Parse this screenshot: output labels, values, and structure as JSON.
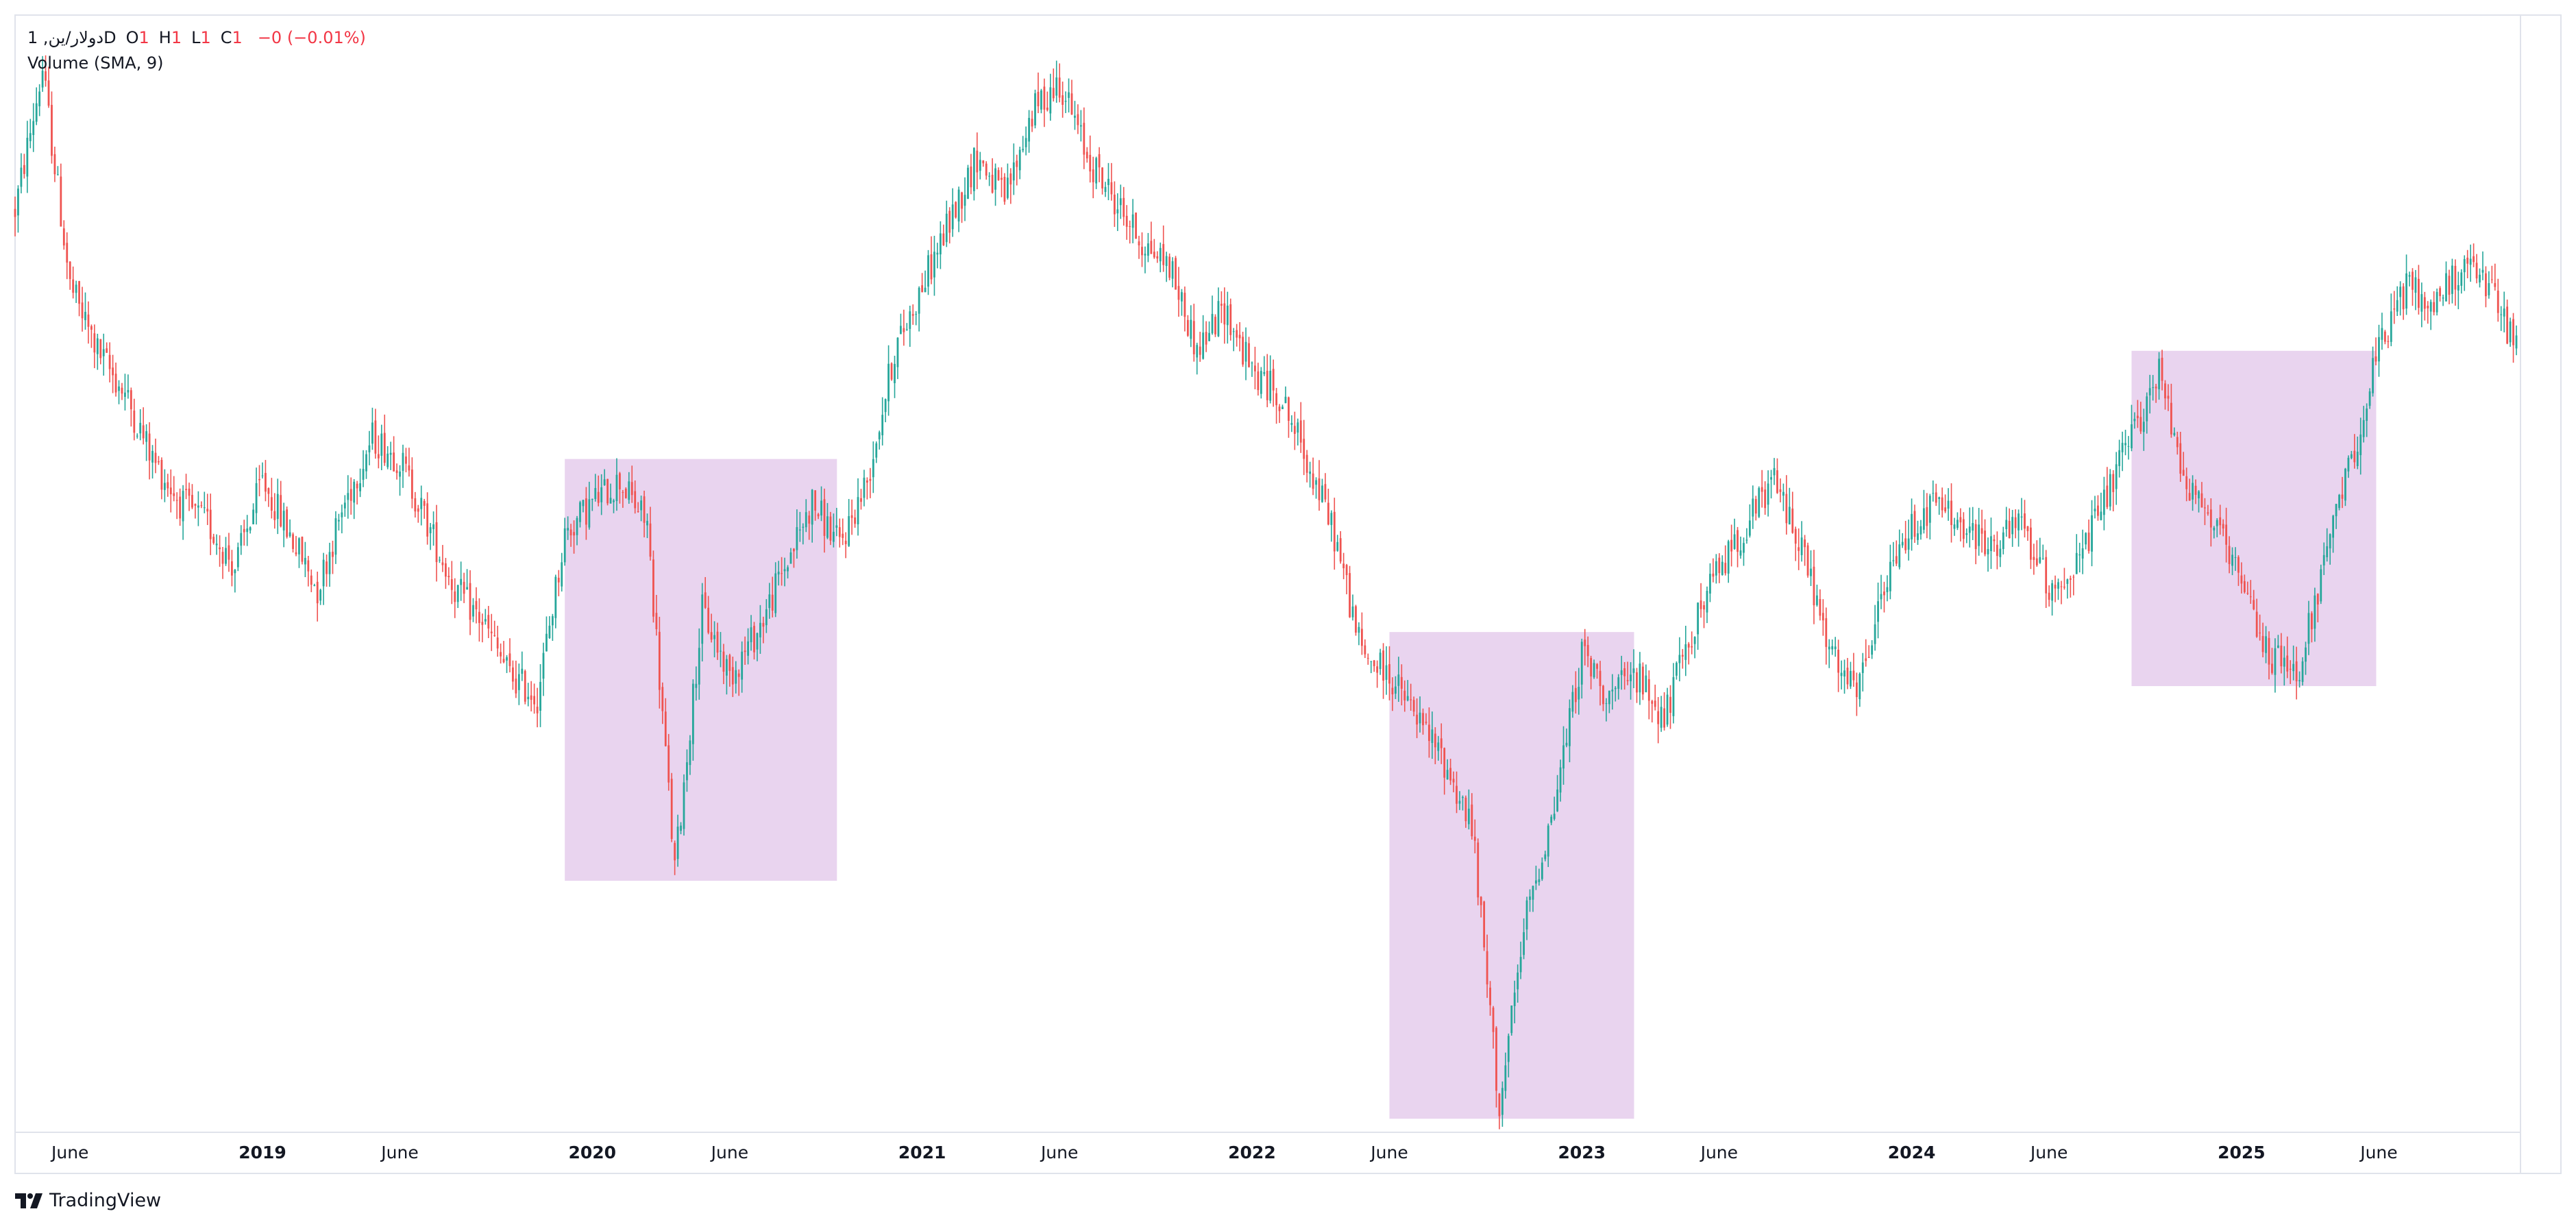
{
  "legend": {
    "symbol": "1 ,دولار/ين",
    "interval": "D",
    "open_label": "O",
    "open_value": "1",
    "high_label": "H",
    "high_value": "1",
    "low_label": "L",
    "low_value": "1",
    "close_label": "C",
    "close_value": "1",
    "change": "−0 (−0.01%)"
  },
  "volume_legend": "Volume (SMA, 9)",
  "brand": "TradingView",
  "colors": {
    "up": "#26a69a",
    "down": "#ef5350",
    "highlight": "#e1c6e9",
    "grid_border": "#e0e3eb",
    "axis_text": "#131722"
  },
  "chart_data": {
    "type": "candlestick",
    "x_axis_labels": [
      "June",
      "2019",
      "June",
      "2020",
      "June",
      "2021",
      "June",
      "2022",
      "June",
      "2023",
      "June",
      "2024",
      "June",
      "2025",
      "June"
    ],
    "x_range": [
      "2018-04",
      "2025-11"
    ],
    "y_axis": "hidden",
    "y_range_relative": [
      0,
      100
    ],
    "close_path": [
      [
        "2018-04",
        85
      ],
      [
        "2018-05",
        98
      ],
      [
        "2018-06",
        78
      ],
      [
        "2018-07",
        72
      ],
      [
        "2018-08",
        68
      ],
      [
        "2018-09",
        62
      ],
      [
        "2018-10",
        58
      ],
      [
        "2018-11",
        56
      ],
      [
        "2018-12",
        52
      ],
      [
        "2019-01",
        60
      ],
      [
        "2019-02",
        55
      ],
      [
        "2019-03",
        50
      ],
      [
        "2019-04",
        58
      ],
      [
        "2019-05",
        64
      ],
      [
        "2019-06",
        62
      ],
      [
        "2019-07",
        56
      ],
      [
        "2019-08",
        50
      ],
      [
        "2019-09",
        47
      ],
      [
        "2019-10",
        42
      ],
      [
        "2019-11",
        40
      ],
      [
        "2019-12",
        55
      ],
      [
        "2020-01",
        58
      ],
      [
        "2020-02",
        60
      ],
      [
        "2020-03",
        56
      ],
      [
        "2020-04",
        24
      ],
      [
        "2020-05",
        48
      ],
      [
        "2020-06",
        42
      ],
      [
        "2020-07",
        46
      ],
      [
        "2020-08",
        52
      ],
      [
        "2020-09",
        58
      ],
      [
        "2020-10",
        54
      ],
      [
        "2020-11",
        60
      ],
      [
        "2020-12",
        72
      ],
      [
        "2021-01",
        78
      ],
      [
        "2021-02",
        84
      ],
      [
        "2021-03",
        90
      ],
      [
        "2021-04",
        86
      ],
      [
        "2021-05",
        94
      ],
      [
        "2021-06",
        97
      ],
      [
        "2021-07",
        90
      ],
      [
        "2021-08",
        86
      ],
      [
        "2021-09",
        82
      ],
      [
        "2021-10",
        80
      ],
      [
        "2021-11",
        72
      ],
      [
        "2021-12",
        76
      ],
      [
        "2022-01",
        70
      ],
      [
        "2022-02",
        68
      ],
      [
        "2022-03",
        62
      ],
      [
        "2022-04",
        55
      ],
      [
        "2022-05",
        44
      ],
      [
        "2022-06",
        42
      ],
      [
        "2022-07",
        38
      ],
      [
        "2022-08",
        34
      ],
      [
        "2022-09",
        28
      ],
      [
        "2022-10",
        2
      ],
      [
        "2022-11",
        20
      ],
      [
        "2022-12",
        30
      ],
      [
        "2023-01",
        44
      ],
      [
        "2023-02",
        40
      ],
      [
        "2023-03",
        42
      ],
      [
        "2023-04",
        38
      ],
      [
        "2023-05",
        46
      ],
      [
        "2023-06",
        52
      ],
      [
        "2023-07",
        56
      ],
      [
        "2023-08",
        60
      ],
      [
        "2023-09",
        54
      ],
      [
        "2023-10",
        44
      ],
      [
        "2023-11",
        40
      ],
      [
        "2023-12",
        50
      ],
      [
        "2024-01",
        56
      ],
      [
        "2024-02",
        58
      ],
      [
        "2024-03",
        55
      ],
      [
        "2024-04",
        54
      ],
      [
        "2024-05",
        56
      ],
      [
        "2024-06",
        50
      ],
      [
        "2024-07",
        52
      ],
      [
        "2024-08",
        58
      ],
      [
        "2024-09",
        64
      ],
      [
        "2024-10",
        70
      ],
      [
        "2024-11",
        60
      ],
      [
        "2024-12",
        56
      ],
      [
        "2025-01",
        50
      ],
      [
        "2025-02",
        44
      ],
      [
        "2025-03",
        42
      ],
      [
        "2025-04",
        52
      ],
      [
        "2025-05",
        62
      ],
      [
        "2025-06",
        72
      ],
      [
        "2025-07",
        78
      ],
      [
        "2025-08",
        76
      ],
      [
        "2025-09",
        80
      ],
      [
        "2025-10",
        78
      ],
      [
        "2025-11",
        72
      ]
    ],
    "highlight_ranges": [
      {
        "from": "2019-12",
        "to": "2020-09"
      },
      {
        "from": "2022-06",
        "to": "2023-02"
      },
      {
        "from": "2024-09",
        "to": "2025-05"
      }
    ],
    "grid": false,
    "legend_position": "top-left"
  }
}
